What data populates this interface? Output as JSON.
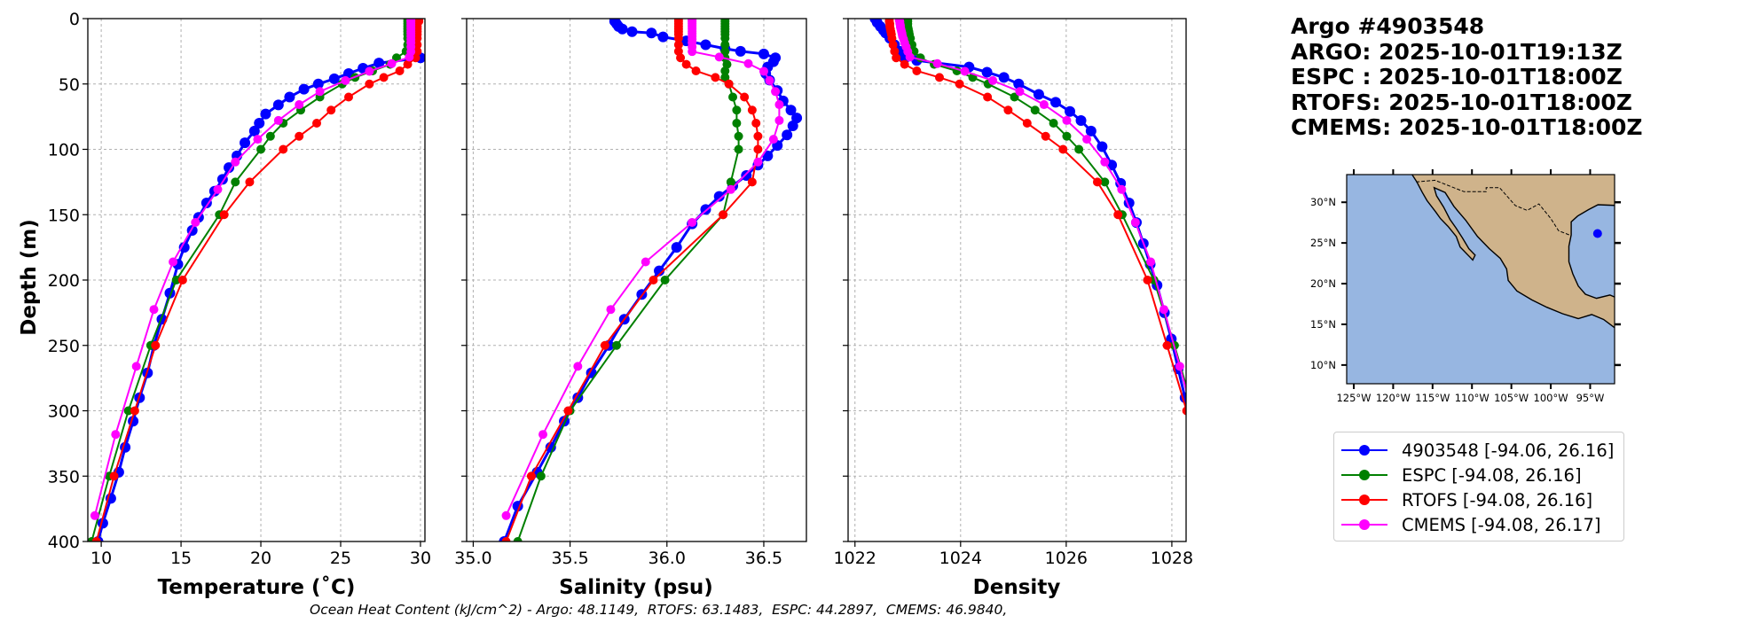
{
  "title": {
    "lines": [
      "Argo #4903548",
      "ARGO: 2025-10-01T19:13Z",
      "ESPC : 2025-10-01T18:00Z",
      "RTOFS: 2025-10-01T18:00Z",
      "CMEMS: 2025-10-01T18:00Z"
    ]
  },
  "footer": {
    "ohc_text": "Ocean Heat Content (kJ/cm^2) - Argo: 48.1149,  RTOFS: 63.1483,  ESPC: 44.2897,  CMEMS: 46.9840,"
  },
  "legend": {
    "placement": "lower-right",
    "entries": [
      {
        "label": "4903548 [-94.06, 26.16]",
        "color": "#0000ff"
      },
      {
        "label": "ESPC [-94.08, 26.16]",
        "color": "#008000"
      },
      {
        "label": "RTOFS [-94.08, 26.16]",
        "color": "#ff0000"
      },
      {
        "label": "CMEMS [-94.08, 26.17]",
        "color": "#ff00ff"
      }
    ]
  },
  "map": {
    "lon_range": [
      -125.9,
      -91.9
    ],
    "lat_range": [
      7.7,
      33.4
    ],
    "lon_ticks": [
      {
        "v": -125,
        "label": "125°W"
      },
      {
        "v": -120,
        "label": "120°W"
      },
      {
        "v": -115,
        "label": "115°W"
      },
      {
        "v": -110,
        "label": "110°W"
      },
      {
        "v": -105,
        "label": "105°W"
      },
      {
        "v": -100,
        "label": "100°W"
      },
      {
        "v": -95,
        "label": "95°W"
      }
    ],
    "lat_ticks": [
      {
        "v": 30,
        "label": "30°N"
      },
      {
        "v": 25,
        "label": "25°N"
      },
      {
        "v": 20,
        "label": "20°N"
      },
      {
        "v": 15,
        "label": "15°N"
      },
      {
        "v": 10,
        "label": "10°N"
      }
    ],
    "ocean_color": "#97b6e1",
    "land_color": "#cfb38b",
    "float_position": {
      "lon": -94.06,
      "lat": 26.16,
      "color": "#0000ff"
    }
  },
  "chart_data": [
    {
      "type": "line",
      "xlabel": "Temperature (˚C)",
      "ylabel": "Depth (m)",
      "xlim": [
        9.16,
        30.28
      ],
      "ylim": [
        400,
        0
      ],
      "xticks": [
        10,
        15,
        20,
        25,
        30
      ],
      "xtick_labels": [
        "10",
        "15",
        "20",
        "25",
        "30"
      ],
      "yticks": [
        0,
        50,
        100,
        150,
        200,
        250,
        300,
        350,
        400
      ],
      "ytick_labels": [
        "0",
        "50",
        "100",
        "150",
        "200",
        "250",
        "300",
        "350",
        "400"
      ],
      "grid": true,
      "series": [
        {
          "name": "4903548",
          "color": "#0000ff",
          "depth": [
            0,
            4,
            8,
            12,
            16,
            20,
            24,
            28,
            30,
            34,
            38,
            42,
            46,
            50,
            54,
            60,
            66,
            73,
            80,
            86,
            95,
            105,
            114,
            123,
            132,
            141,
            152,
            162,
            175,
            188,
            210,
            230,
            250,
            271,
            290,
            308,
            328,
            347,
            367,
            386,
            400
          ],
          "values": [
            29.3,
            29.3,
            29.35,
            29.4,
            29.4,
            29.45,
            29.5,
            29.6,
            30.0,
            27.4,
            26.4,
            25.5,
            24.6,
            23.6,
            22.7,
            21.8,
            21.1,
            20.3,
            19.9,
            19.6,
            19.0,
            18.5,
            18.0,
            17.6,
            17.1,
            16.6,
            16.1,
            15.7,
            15.2,
            14.8,
            14.3,
            13.8,
            13.3,
            12.9,
            12.4,
            12.0,
            11.5,
            11.1,
            10.6,
            10.1,
            9.8
          ]
        },
        {
          "name": "ESPC",
          "color": "#008000",
          "depth": [
            0,
            2,
            4,
            6,
            8,
            10,
            12,
            15,
            20,
            25,
            30,
            35,
            40,
            45,
            50,
            60,
            70,
            80,
            90,
            100,
            125,
            150,
            200,
            250,
            300,
            350,
            400
          ],
          "values": [
            29.2,
            29.2,
            29.2,
            29.2,
            29.2,
            29.2,
            29.2,
            29.2,
            29.2,
            29.1,
            28.5,
            28.1,
            27.0,
            25.9,
            25.1,
            23.7,
            22.5,
            21.4,
            20.6,
            20.0,
            18.4,
            17.4,
            14.7,
            13.1,
            11.7,
            10.5,
            9.4
          ]
        },
        {
          "name": "RTOFS",
          "color": "#ff0000",
          "depth": [
            0,
            2,
            4,
            6,
            8,
            10,
            12,
            15,
            20,
            25,
            30,
            35,
            40,
            45,
            50,
            60,
            70,
            80,
            90,
            100,
            125,
            150,
            200,
            250,
            300,
            350,
            400
          ],
          "values": [
            29.9,
            29.9,
            29.8,
            29.8,
            29.8,
            29.8,
            29.8,
            29.8,
            29.8,
            29.8,
            29.7,
            29.2,
            28.7,
            27.7,
            26.8,
            25.5,
            24.4,
            23.5,
            22.4,
            21.4,
            19.3,
            17.7,
            15.1,
            13.4,
            12.1,
            10.8,
            9.7
          ]
        },
        {
          "name": "CMEMS",
          "color": "#ff00ff",
          "depth": [
            0.5,
            1.5,
            2.6,
            3.8,
            5.1,
            6.4,
            7.9,
            9.6,
            11.4,
            13.5,
            15.8,
            18.5,
            21.6,
            25.2,
            29.4,
            34.4,
            40.3,
            47.4,
            55.8,
            65.8,
            77.9,
            92.3,
            109.7,
            130.7,
            155.9,
            186.1,
            222.5,
            266.0,
            318.1,
            380.2
          ],
          "values": [
            29.4,
            29.4,
            29.4,
            29.4,
            29.4,
            29.4,
            29.4,
            29.4,
            29.4,
            29.4,
            29.4,
            29.4,
            29.4,
            29.4,
            29.3,
            28.2,
            26.8,
            25.3,
            23.7,
            22.4,
            21.1,
            19.8,
            18.4,
            17.3,
            15.9,
            14.5,
            13.3,
            12.2,
            10.9,
            9.6
          ]
        }
      ]
    },
    {
      "type": "line",
      "xlabel": "Salinity (psu)",
      "xlim": [
        34.966,
        36.72
      ],
      "ylim": [
        400,
        0
      ],
      "xticks": [
        35.0,
        35.5,
        36.0,
        36.5
      ],
      "xtick_labels": [
        "35.0",
        "35.5",
        "36.0",
        "36.5"
      ],
      "grid": true,
      "series": [
        {
          "name": "4903548",
          "color": "#0000ff",
          "depth": [
            0,
            2,
            4,
            6,
            8,
            10,
            11,
            14,
            17,
            20,
            23,
            25,
            27,
            30,
            33,
            37,
            42,
            47,
            55,
            63,
            70,
            76,
            82,
            89,
            97,
            105,
            112,
            120,
            128,
            136,
            146,
            157,
            175,
            193,
            211,
            230,
            250,
            271,
            290,
            308,
            328,
            347,
            373,
            400
          ],
          "values": [
            35.73,
            35.73,
            35.74,
            35.75,
            35.77,
            35.82,
            35.92,
            35.98,
            36.1,
            36.2,
            36.3,
            36.38,
            36.5,
            36.56,
            36.55,
            36.52,
            36.51,
            36.53,
            36.57,
            36.6,
            36.64,
            36.67,
            36.65,
            36.62,
            36.57,
            36.52,
            36.47,
            36.41,
            36.34,
            36.27,
            36.2,
            36.13,
            36.05,
            35.96,
            35.87,
            35.78,
            35.7,
            35.61,
            35.54,
            35.47,
            35.4,
            35.33,
            35.23,
            35.16
          ]
        },
        {
          "name": "ESPC",
          "color": "#008000",
          "depth": [
            0,
            2,
            4,
            6,
            8,
            10,
            12,
            15,
            20,
            25,
            30,
            35,
            40,
            45,
            50,
            60,
            70,
            80,
            90,
            100,
            125,
            150,
            200,
            250,
            300,
            350,
            400
          ],
          "values": [
            36.3,
            36.3,
            36.3,
            36.3,
            36.3,
            36.3,
            36.3,
            36.3,
            36.3,
            36.3,
            36.3,
            36.31,
            36.3,
            36.3,
            36.32,
            36.34,
            36.36,
            36.36,
            36.37,
            36.37,
            36.33,
            36.29,
            35.99,
            35.74,
            35.5,
            35.35,
            35.23
          ]
        },
        {
          "name": "RTOFS",
          "color": "#ff0000",
          "depth": [
            0,
            2,
            4,
            6,
            8,
            10,
            12,
            15,
            20,
            25,
            30,
            35,
            40,
            45,
            50,
            60,
            70,
            80,
            90,
            100,
            125,
            150,
            200,
            250,
            300,
            350,
            400
          ],
          "values": [
            36.06,
            36.06,
            36.06,
            36.06,
            36.06,
            36.06,
            36.06,
            36.06,
            36.06,
            36.06,
            36.07,
            36.1,
            36.15,
            36.25,
            36.32,
            36.4,
            36.44,
            36.46,
            36.47,
            36.47,
            36.44,
            36.29,
            35.93,
            35.68,
            35.49,
            35.3,
            35.17
          ]
        },
        {
          "name": "CMEMS",
          "color": "#ff00ff",
          "depth": [
            0.5,
            1.5,
            2.6,
            3.8,
            5.1,
            6.4,
            7.9,
            9.6,
            11.4,
            13.5,
            15.8,
            18.5,
            21.6,
            25.2,
            29.4,
            34.4,
            40.3,
            47.4,
            55.8,
            65.8,
            77.9,
            92.3,
            109.7,
            130.7,
            155.9,
            186.1,
            222.5,
            266.0,
            318.1,
            380.2
          ],
          "values": [
            36.13,
            36.13,
            36.13,
            36.13,
            36.13,
            36.13,
            36.13,
            36.13,
            36.13,
            36.13,
            36.13,
            36.13,
            36.13,
            36.13,
            36.27,
            36.42,
            36.5,
            36.53,
            36.56,
            36.58,
            36.58,
            36.55,
            36.47,
            36.33,
            36.13,
            35.89,
            35.71,
            35.54,
            35.36,
            35.17
          ]
        }
      ]
    },
    {
      "type": "line",
      "xlabel": "Density",
      "xlim": [
        1021.87,
        1028.27
      ],
      "ylim": [
        400,
        0
      ],
      "xticks": [
        1022,
        1024,
        1026,
        1028
      ],
      "xtick_labels": [
        "1022",
        "1024",
        "1026",
        "1028"
      ],
      "grid": true,
      "series": [
        {
          "name": "4903548",
          "color": "#0000ff",
          "depth": [
            0,
            3,
            6,
            9,
            11,
            15,
            20,
            25,
            30,
            32,
            37,
            41,
            45,
            50,
            58,
            64,
            71,
            78,
            86,
            98,
            112,
            126,
            141,
            156,
            172,
            188,
            204,
            225,
            245,
            268,
            290,
            312,
            334,
            354,
            373,
            390,
            400
          ],
          "values": [
            1022.38,
            1022.42,
            1022.48,
            1022.54,
            1022.58,
            1022.66,
            1022.75,
            1022.85,
            1022.95,
            1023.17,
            1024.16,
            1024.5,
            1024.82,
            1025.1,
            1025.48,
            1025.8,
            1026.07,
            1026.28,
            1026.47,
            1026.68,
            1026.86,
            1027.03,
            1027.19,
            1027.33,
            1027.46,
            1027.59,
            1027.72,
            1027.86,
            1027.99,
            1028.12,
            1028.25,
            1028.38,
            1028.51,
            1028.65,
            1028.78,
            1028.86,
            1028.91
          ]
        },
        {
          "name": "ESPC",
          "color": "#008000",
          "depth": [
            0,
            2,
            4,
            6,
            8,
            10,
            12,
            15,
            20,
            25,
            30,
            35,
            40,
            45,
            50,
            60,
            70,
            80,
            90,
            100,
            125,
            150,
            200,
            250,
            300,
            350,
            400
          ],
          "values": [
            1023.0,
            1023.0,
            1023.0,
            1023.0,
            1023.01,
            1023.02,
            1023.03,
            1023.05,
            1023.08,
            1023.12,
            1023.24,
            1023.5,
            1023.93,
            1024.23,
            1024.52,
            1025.02,
            1025.41,
            1025.76,
            1026.01,
            1026.24,
            1026.73,
            1027.06,
            1027.66,
            1028.05,
            1028.41,
            1028.72,
            1029.0
          ]
        },
        {
          "name": "RTOFS",
          "color": "#ff0000",
          "depth": [
            0,
            2,
            4,
            6,
            8,
            10,
            12,
            15,
            20,
            25,
            30,
            35,
            40,
            45,
            50,
            60,
            70,
            80,
            90,
            100,
            125,
            150,
            200,
            250,
            300,
            350,
            400
          ],
          "values": [
            1022.65,
            1022.65,
            1022.66,
            1022.66,
            1022.67,
            1022.68,
            1022.69,
            1022.7,
            1022.72,
            1022.75,
            1022.78,
            1022.94,
            1023.17,
            1023.6,
            1023.98,
            1024.51,
            1024.9,
            1025.26,
            1025.61,
            1025.94,
            1026.59,
            1026.98,
            1027.54,
            1027.91,
            1028.28,
            1028.6,
            1028.94
          ]
        },
        {
          "name": "CMEMS",
          "color": "#ff00ff",
          "depth": [
            0.5,
            1.5,
            2.6,
            3.8,
            5.1,
            6.4,
            7.9,
            9.6,
            11.4,
            13.5,
            15.8,
            18.5,
            21.6,
            25.2,
            29.4,
            34.4,
            40.3,
            47.4,
            55.8,
            65.8,
            77.9,
            92.3,
            109.7,
            130.7,
            155.9,
            186.1,
            222.5,
            266.0,
            318.1,
            380.2
          ],
          "values": [
            1022.84,
            1022.84,
            1022.85,
            1022.85,
            1022.86,
            1022.86,
            1022.87,
            1022.88,
            1022.89,
            1022.9,
            1022.92,
            1022.94,
            1022.97,
            1023.0,
            1023.04,
            1023.56,
            1024.08,
            1024.61,
            1025.12,
            1025.58,
            1026.01,
            1026.39,
            1026.73,
            1027.05,
            1027.31,
            1027.6,
            1027.85,
            1028.15,
            1028.5,
            1028.88
          ]
        }
      ]
    }
  ]
}
